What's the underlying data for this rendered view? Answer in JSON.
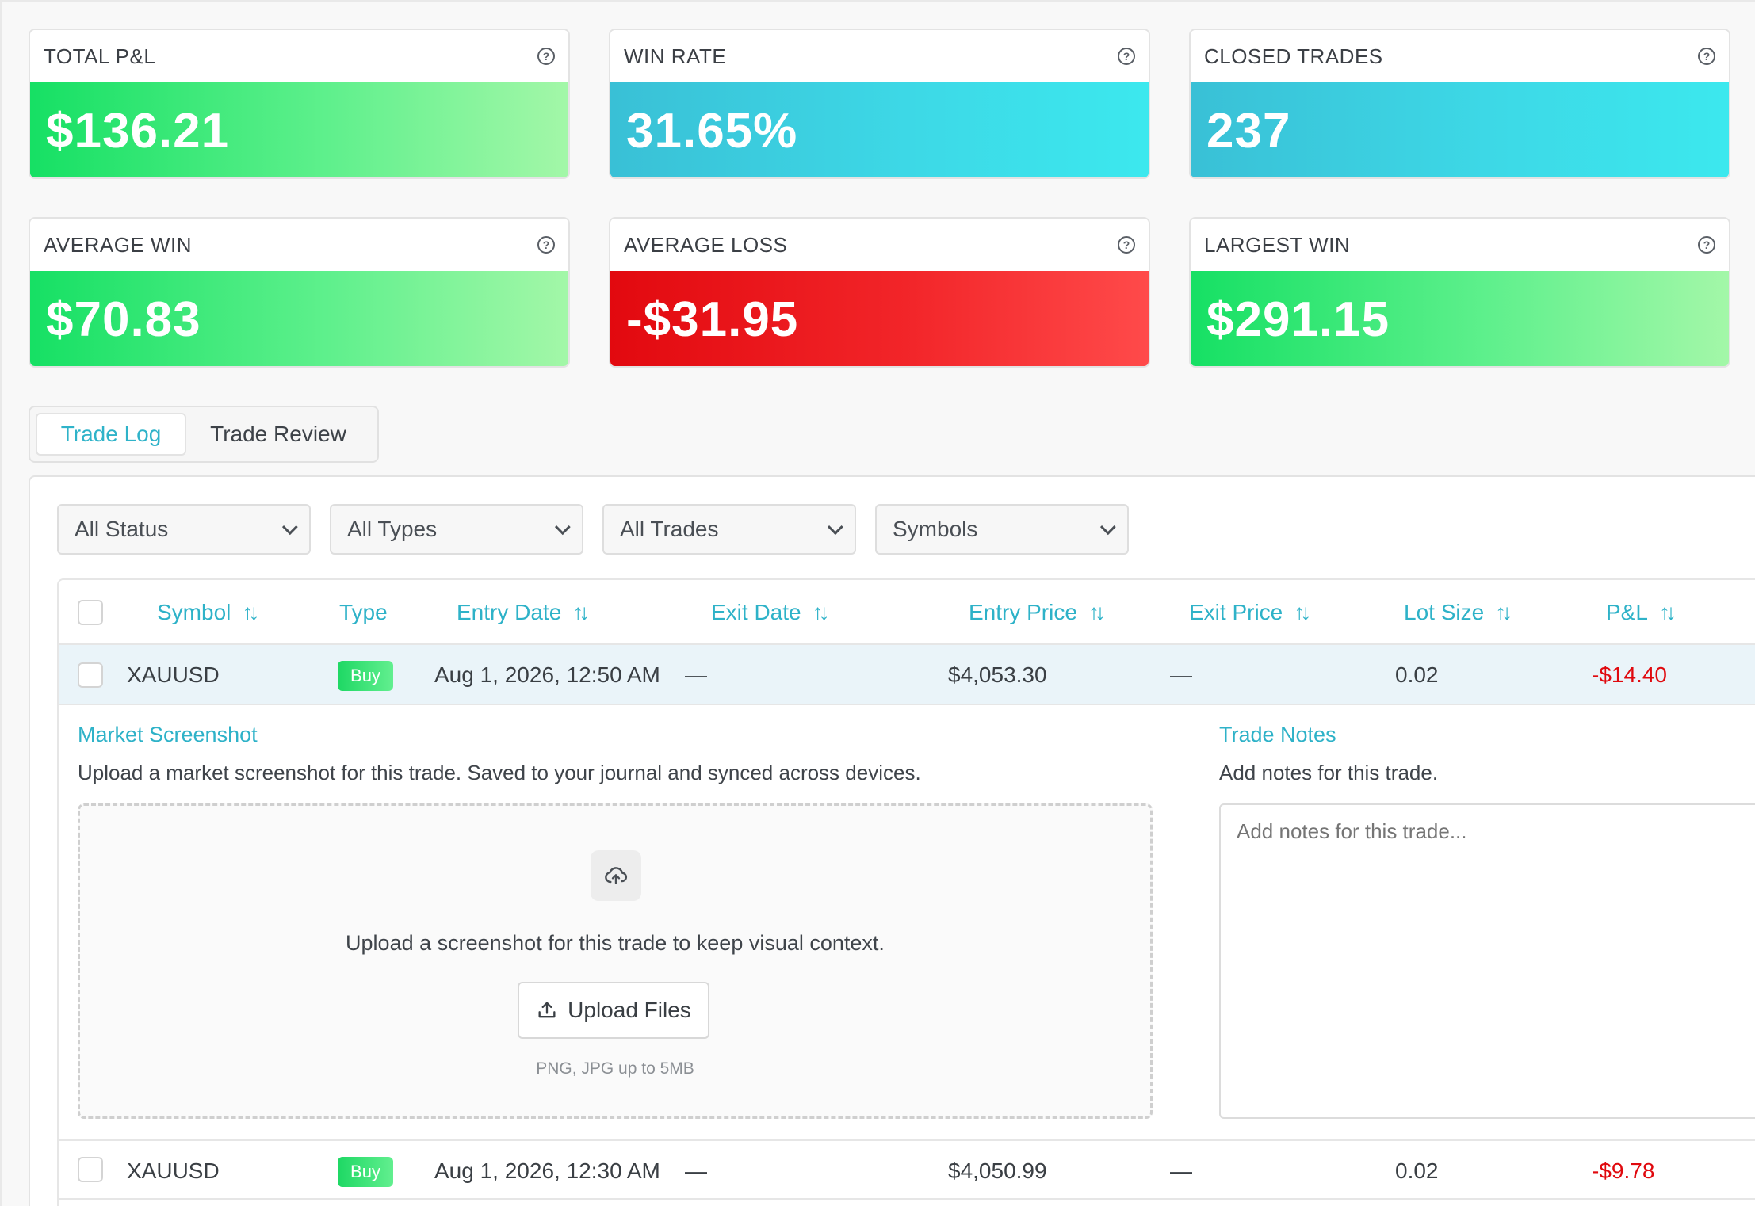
{
  "stats": [
    {
      "title": "TOTAL P&L",
      "value": "$136.21",
      "tone": "green"
    },
    {
      "title": "WIN RATE",
      "value": "31.65%",
      "tone": "cyan"
    },
    {
      "title": "CLOSED TRADES",
      "value": "237",
      "tone": "cyan"
    },
    {
      "title": "AVERAGE WIN",
      "value": "$70.83",
      "tone": "green"
    },
    {
      "title": "AVERAGE LOSS",
      "value": "-$31.95",
      "tone": "red"
    },
    {
      "title": "LARGEST WIN",
      "value": "$291.15",
      "tone": "green"
    }
  ],
  "colors": {
    "accent": "#2eb2c8",
    "positive": "#22e06a",
    "negative": "#e0090e",
    "info": "#3dd8e6"
  },
  "tabs": [
    {
      "label": "Trade Log",
      "active": true
    },
    {
      "label": "Trade Review",
      "active": false
    }
  ],
  "filters": [
    {
      "selected": "All Status"
    },
    {
      "selected": "All Types"
    },
    {
      "selected": "All Trades"
    },
    {
      "selected": "Symbols"
    }
  ],
  "table": {
    "columns": [
      "Symbol",
      "Type",
      "Entry Date",
      "Exit Date",
      "Entry Price",
      "Exit Price",
      "Lot Size",
      "P&L"
    ],
    "rows": [
      {
        "symbol": "XAUUSD",
        "type": "Buy",
        "entry_date": "Aug 1, 2026, 12:50 AM",
        "exit_date": "—",
        "entry_price": "$4,053.30",
        "exit_price": "—",
        "lot_size": "0.02",
        "pnl": "-$14.40"
      },
      {
        "symbol": "XAUUSD",
        "type": "Buy",
        "entry_date": "Aug 1, 2026, 12:30 AM",
        "exit_date": "—",
        "entry_price": "$4,050.99",
        "exit_price": "—",
        "lot_size": "0.02",
        "pnl": "-$9.78"
      }
    ]
  },
  "detail": {
    "screenshot_title": "Market Screenshot",
    "screenshot_desc": "Upload a market screenshot for this trade. Saved to your journal and synced across devices.",
    "dropzone_text": "Upload a screenshot for this trade to keep visual context.",
    "upload_label": "Upload Files",
    "upload_hint": "PNG, JPG up to 5MB",
    "notes_title": "Trade Notes",
    "notes_desc": "Add notes for this trade.",
    "notes_placeholder": "Add notes for this trade..."
  }
}
